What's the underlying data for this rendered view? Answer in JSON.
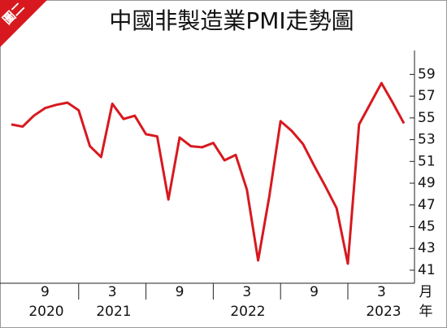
{
  "chart_data": {
    "type": "line",
    "title": "中國非製造業PMI走勢圖",
    "badge": "圖二",
    "categories": [
      null,
      null,
      null,
      "9",
      null,
      null,
      null,
      null,
      null,
      "3",
      null,
      null,
      null,
      null,
      null,
      "9",
      null,
      null,
      null,
      null,
      null,
      "3",
      null,
      null,
      null,
      null,
      null,
      "9",
      null,
      null,
      null,
      null,
      null,
      "3",
      null,
      null
    ],
    "years": [
      "2020",
      "2021",
      "2022",
      "2023"
    ],
    "x_unit": "月",
    "year_unit": "年",
    "series": [
      {
        "name": "PMI",
        "color": "#d7191f",
        "values": [
          54.4,
          54.2,
          55.2,
          55.9,
          56.2,
          56.4,
          55.7,
          52.4,
          51.4,
          56.3,
          54.9,
          55.2,
          53.5,
          53.3,
          47.5,
          53.2,
          52.4,
          52.3,
          52.7,
          51.1,
          51.6,
          48.4,
          41.9,
          47.8,
          54.7,
          53.8,
          52.6,
          50.6,
          48.7,
          46.7,
          41.6,
          54.4,
          56.3,
          58.2,
          56.4,
          54.5
        ]
      }
    ],
    "ylim": [
      39.8,
      61.2
    ],
    "yticks": [
      41,
      43,
      45,
      47,
      49,
      51,
      53,
      55,
      57,
      59
    ],
    "grid": false
  }
}
